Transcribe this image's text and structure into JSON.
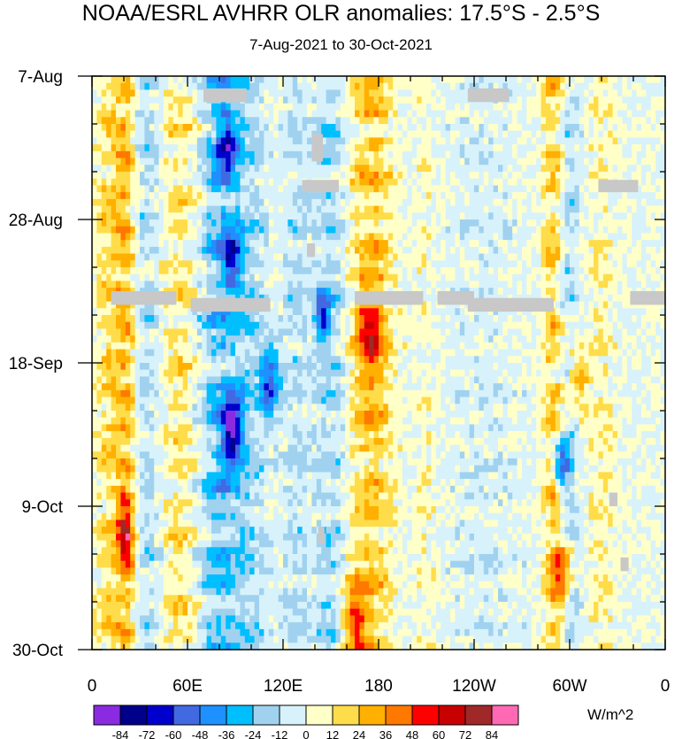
{
  "chart_data": {
    "type": "heatmap",
    "title": "NOAA/ESRL AVHRR OLR anomalies: 17.5°S - 2.5°S",
    "subtitle": "7-Aug-2021 to 30-Oct-2021",
    "xlabel": "",
    "ylabel": "",
    "x_ticks": [
      {
        "label": "0",
        "lon": 0
      },
      {
        "label": "60E",
        "lon": 60
      },
      {
        "label": "120E",
        "lon": 120
      },
      {
        "label": "180",
        "lon": 180
      },
      {
        "label": "120W",
        "lon": 240
      },
      {
        "label": "60W",
        "lon": 300
      },
      {
        "label": "0",
        "lon": 360
      }
    ],
    "x_range": [
      0,
      360
    ],
    "y_ticks": [
      {
        "label": "7-Aug",
        "day": 0
      },
      {
        "label": "28-Aug",
        "day": 21
      },
      {
        "label": "18-Sep",
        "day": 42
      },
      {
        "label": "9-Oct",
        "day": 63
      },
      {
        "label": "30-Oct",
        "day": 84
      }
    ],
    "y_range": [
      0,
      84
    ],
    "colorbar": {
      "units": "W/m^2",
      "levels": [
        -84,
        -72,
        -60,
        -48,
        -36,
        -24,
        -12,
        0,
        12,
        24,
        36,
        48,
        60,
        72,
        84
      ],
      "level_labels": [
        "-84",
        "-72",
        "-60",
        "-48",
        "-36",
        "-24",
        "-12",
        "0",
        "12",
        "24",
        "36",
        "48",
        "60",
        "72",
        "84"
      ],
      "colors": [
        "#8a2be2",
        "#00008b",
        "#0000cd",
        "#4169e1",
        "#1e90ff",
        "#00bfff",
        "#a0d2f0",
        "#d8f2fb",
        "#ffffc8",
        "#ffdc4a",
        "#ffb000",
        "#ff7800",
        "#ff0000",
        "#c80000",
        "#a02828",
        "#ff69b4"
      ]
    },
    "missing_color": "#c8c8c8",
    "bands": [
      {
        "lon": 12,
        "width": 10,
        "amp": 24
      },
      {
        "lon": 22,
        "width": 6,
        "amp": 30
      },
      {
        "lon": 35,
        "width": 10,
        "amp": -18
      },
      {
        "lon": 55,
        "width": 12,
        "amp": 20
      },
      {
        "lon": 80,
        "width": 14,
        "amp": -34
      },
      {
        "lon": 100,
        "width": 10,
        "amp": -20
      },
      {
        "lon": 128,
        "width": 10,
        "amp": -16
      },
      {
        "lon": 150,
        "width": 10,
        "amp": -22
      },
      {
        "lon": 175,
        "width": 14,
        "amp": 30
      },
      {
        "lon": 210,
        "width": 8,
        "amp": 10
      },
      {
        "lon": 245,
        "width": 30,
        "amp": -8
      },
      {
        "lon": 290,
        "width": 7,
        "amp": 30
      },
      {
        "lon": 300,
        "width": 7,
        "amp": -20
      },
      {
        "lon": 320,
        "width": 10,
        "amp": 12
      }
    ],
    "features": [
      {
        "lon": 88,
        "day": 52,
        "amp": -80,
        "r": 5
      },
      {
        "lon": 21,
        "day": 67,
        "amp": 55,
        "r": 4
      },
      {
        "lon": 88,
        "day": 27,
        "amp": -50,
        "r": 5
      },
      {
        "lon": 112,
        "day": 45,
        "amp": -55,
        "r": 5
      },
      {
        "lon": 145,
        "day": 35,
        "amp": -50,
        "r": 4
      },
      {
        "lon": 165,
        "day": 80,
        "amp": 45,
        "r": 6
      },
      {
        "lon": 295,
        "day": 73,
        "amp": 40,
        "r": 5
      },
      {
        "lon": 295,
        "day": 57,
        "amp": -50,
        "r": 4
      },
      {
        "lon": 85,
        "day": 10,
        "amp": -50,
        "r": 5
      },
      {
        "lon": 175,
        "day": 38,
        "amp": 40,
        "r": 7
      },
      {
        "lon": 305,
        "day": 44,
        "amp": 35,
        "r": 5
      }
    ],
    "missing_segments": [
      {
        "lon0": 70,
        "lon1": 97,
        "day0": 1.8,
        "day1": 3.8
      },
      {
        "lon0": 236,
        "lon1": 262,
        "day0": 1.8,
        "day1": 3.8
      },
      {
        "lon0": 138,
        "lon1": 145,
        "day0": 8.5,
        "day1": 12.5
      },
      {
        "lon0": 132,
        "lon1": 155,
        "day0": 15.2,
        "day1": 17
      },
      {
        "lon0": 318,
        "lon1": 343,
        "day0": 15.2,
        "day1": 17
      },
      {
        "lon0": 135,
        "lon1": 140,
        "day0": 24.5,
        "day1": 26.5
      },
      {
        "lon0": 12,
        "lon1": 53,
        "day0": 31.5,
        "day1": 33.5
      },
      {
        "lon0": 62,
        "lon1": 112,
        "day0": 32.5,
        "day1": 34.5
      },
      {
        "lon0": 165,
        "lon1": 208,
        "day0": 31.5,
        "day1": 33.5
      },
      {
        "lon0": 217,
        "lon1": 240,
        "day0": 31.5,
        "day1": 33.5
      },
      {
        "lon0": 236,
        "lon1": 290,
        "day0": 32.5,
        "day1": 34.5
      },
      {
        "lon0": 338,
        "lon1": 360,
        "day0": 31.5,
        "day1": 33.5
      },
      {
        "lon0": 325,
        "lon1": 330,
        "day0": 61,
        "day1": 63
      },
      {
        "lon0": 332,
        "lon1": 337,
        "day0": 70.5,
        "day1": 72.5
      },
      {
        "lon0": 142,
        "lon1": 146,
        "day0": 66,
        "day1": 68.5
      }
    ]
  }
}
